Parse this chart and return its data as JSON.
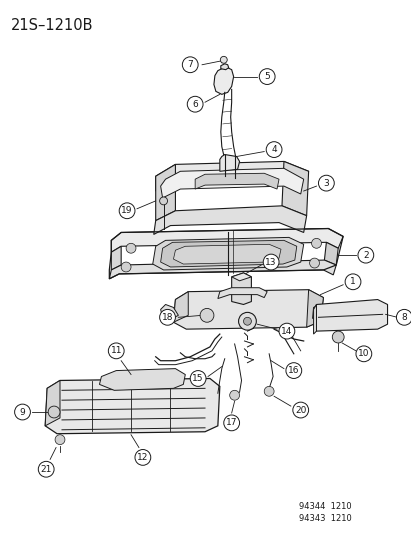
{
  "title": "21S–1210B",
  "bg_color": "#ffffff",
  "lc": "#1a1a1a",
  "footer": [
    "94344  1210",
    "94343  1210"
  ],
  "label_fs": 6.5,
  "title_fs": 10.5
}
